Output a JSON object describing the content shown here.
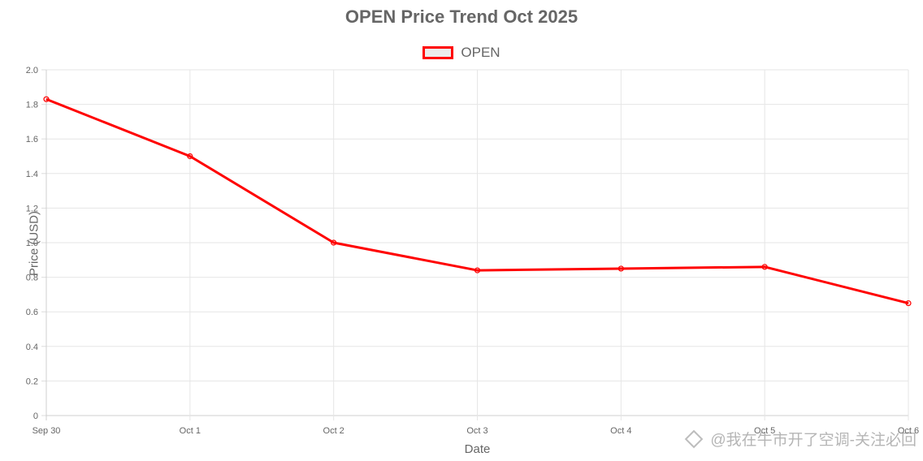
{
  "chart_data": {
    "type": "line",
    "title": "OPEN Price Trend Oct 2025",
    "xlabel": "Date",
    "ylabel": "Price (USD)",
    "categories": [
      "Sep 30",
      "Oct 1",
      "Oct 2",
      "Oct 3",
      "Oct 4",
      "Oct 5",
      "Oct 6"
    ],
    "series": [
      {
        "name": "OPEN",
        "values": [
          1.83,
          1.5,
          1.0,
          0.84,
          0.85,
          0.86,
          0.65
        ],
        "color": "#ff0000"
      }
    ],
    "ylim": [
      0,
      2.0
    ],
    "yticks": [
      "0",
      "0.2",
      "0.4",
      "0.6",
      "0.8",
      "1.0",
      "1.2",
      "1.4",
      "1.6",
      "1.8",
      "2.0"
    ],
    "grid": true,
    "legend_position": "top"
  },
  "watermark": {
    "text": "@我在牛市开了空调-关注必回",
    "icon": "diamond-logo-icon"
  }
}
